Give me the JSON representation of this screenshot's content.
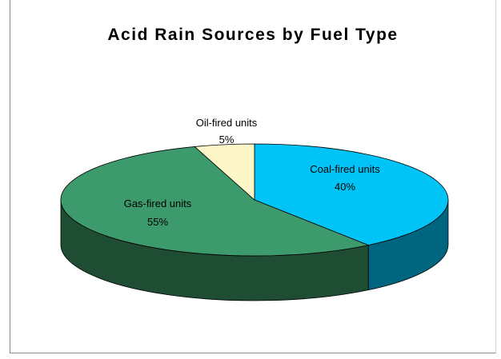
{
  "chart_data": {
    "type": "pie",
    "title": "Acid Rain Sources by Fuel Type",
    "categories": [
      "Coal-fired units",
      "Gas-fired units",
      "Oil-fired units"
    ],
    "values": [
      40,
      55,
      5
    ],
    "value_labels": [
      "40%",
      "55%",
      "5%"
    ],
    "colors_top": [
      "#00c4f5",
      "#3d9a6d",
      "#fdf6c8"
    ],
    "colors_side": [
      "#006680",
      "#1f4d34",
      "#8c8a6a"
    ],
    "style": "3d-pie"
  }
}
